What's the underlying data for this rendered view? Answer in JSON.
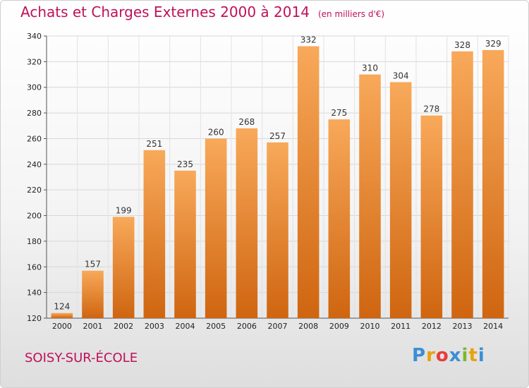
{
  "chart_data": {
    "type": "bar",
    "title": "Achats et Charges Externes 2000 à 2014",
    "subtitle": "(en milliers d'€)",
    "categories": [
      "2000",
      "2001",
      "2002",
      "2003",
      "2004",
      "2005",
      "2006",
      "2007",
      "2008",
      "2009",
      "2010",
      "2011",
      "2012",
      "2013",
      "2014"
    ],
    "values": [
      124,
      157,
      199,
      251,
      235,
      260,
      268,
      257,
      332,
      275,
      310,
      304,
      278,
      328,
      329
    ],
    "ylim": [
      120,
      340
    ],
    "yticks": [
      120,
      140,
      160,
      180,
      200,
      220,
      240,
      260,
      280,
      300,
      320,
      340
    ],
    "grid": true,
    "bar_color": "#f08a24"
  },
  "footer": {
    "location": "SOISY-SUR-ÉCOLE"
  },
  "logo": {
    "text": "Proxiti",
    "letters": [
      "P",
      "r",
      "o",
      "x",
      "i",
      "t",
      "i"
    ],
    "colors": [
      "#3a8fd6",
      "#e8a20c",
      "#e83c3c",
      "#3a8fd6",
      "#7cb82f",
      "#e8a20c",
      "#3a8fd6"
    ]
  },
  "colors": {
    "accent": "#c0105a"
  }
}
